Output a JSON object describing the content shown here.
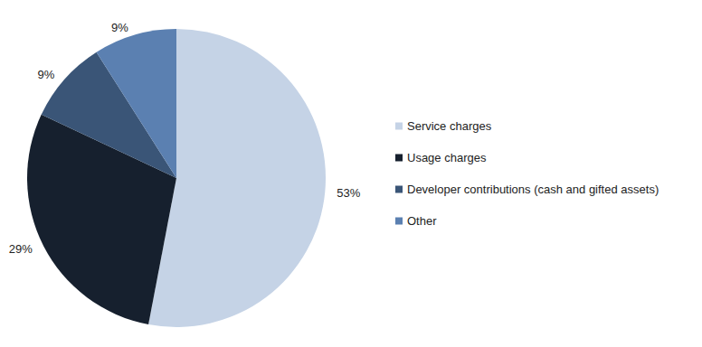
{
  "chart_data": {
    "type": "pie",
    "categories": [
      "Service charges",
      "Usage charges",
      "Developer contributions (cash and gifted assets)",
      "Other"
    ],
    "values": [
      53,
      29,
      9,
      9
    ],
    "value_labels": [
      "53%",
      "29%",
      "9%",
      "9%"
    ],
    "colors": [
      "#c5d3e6",
      "#16202e",
      "#3a5577",
      "#5b80b1"
    ],
    "data_labels": true,
    "legend": "right"
  }
}
